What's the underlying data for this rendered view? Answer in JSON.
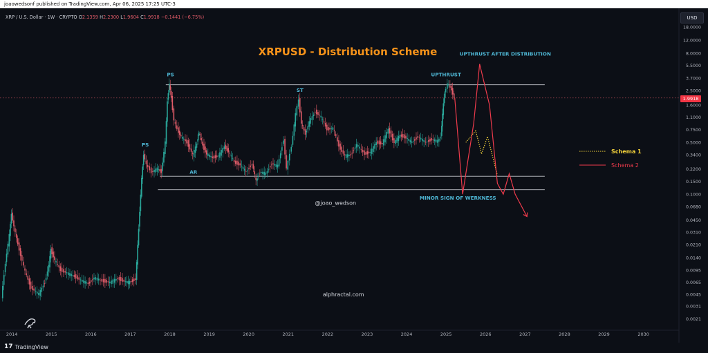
{
  "header": {
    "publisher": "joaowedsonf published on TradingView.com, Apr 06, 2025 17:25 UTC-3",
    "symbol_line": "XRP / U.S. Dollar · 1W · CRYPTO",
    "ohlc": {
      "o_label": "O",
      "o": "2.1359",
      "h_label": "H",
      "h": "2.2300",
      "l_label": "L",
      "l": "1.9604",
      "c_label": "C",
      "c": "1.9918",
      "change": "−0.1441 (−6.75%)"
    }
  },
  "currency": "USD",
  "last_price": "1.9918",
  "logo_text": "TradingView",
  "colors": {
    "background": "#0c0f16",
    "title": "#f7931a",
    "annotation": "#4fb8d6",
    "candle_up": "#2aa89b",
    "candle_down": "#e25b68",
    "schema_1": "#f5d33b",
    "schema_2": "#ef3b4c",
    "range_lines": "#c7c9cf"
  },
  "chart_data": {
    "type": "line",
    "title": "XRPUSD - Distribution Scheme",
    "scale": "log",
    "x_range": [
      2013.7,
      2030.9
    ],
    "y_range": [
      0.0016,
      26
    ],
    "x_ticks": [
      "2014",
      "2015",
      "2016",
      "2017",
      "2018",
      "2019",
      "2020",
      "2021",
      "2022",
      "2023",
      "2024",
      "2025",
      "2026",
      "2027",
      "2028",
      "2029",
      "2030"
    ],
    "y_ticks": [
      "18.0000",
      "12.0000",
      "8.0000",
      "5.5000",
      "3.7000",
      "2.5000",
      "1.6000",
      "1.1000",
      "0.7500",
      "0.5000",
      "0.3400",
      "0.2200",
      "0.1500",
      "0.1000",
      "0.0680",
      "0.0450",
      "0.0310",
      "0.0210",
      "0.0140",
      "0.0095",
      "0.0065",
      "0.0045",
      "0.0031",
      "0.0021"
    ],
    "series": [
      {
        "name": "",
        "kind": "price",
        "points": [
          [
            2013.75,
            0.004
          ],
          [
            2013.85,
            0.012
          ],
          [
            2013.95,
            0.028
          ],
          [
            2014.0,
            0.055
          ],
          [
            2014.1,
            0.03
          ],
          [
            2014.2,
            0.018
          ],
          [
            2014.35,
            0.009
          ],
          [
            2014.5,
            0.0055
          ],
          [
            2014.7,
            0.0045
          ],
          [
            2014.85,
            0.0065
          ],
          [
            2014.95,
            0.011
          ],
          [
            2015.0,
            0.018
          ],
          [
            2015.1,
            0.013
          ],
          [
            2015.25,
            0.0095
          ],
          [
            2015.45,
            0.0085
          ],
          [
            2015.6,
            0.0078
          ],
          [
            2015.8,
            0.0068
          ],
          [
            2015.95,
            0.0062
          ],
          [
            2016.1,
            0.0075
          ],
          [
            2016.3,
            0.0068
          ],
          [
            2016.5,
            0.0065
          ],
          [
            2016.7,
            0.0073
          ],
          [
            2016.9,
            0.0066
          ],
          [
            2017.0,
            0.0065
          ],
          [
            2017.15,
            0.0072
          ],
          [
            2017.2,
            0.02
          ],
          [
            2017.25,
            0.06
          ],
          [
            2017.3,
            0.16
          ],
          [
            2017.35,
            0.35
          ],
          [
            2017.42,
            0.25
          ],
          [
            2017.55,
            0.2
          ],
          [
            2017.7,
            0.22
          ],
          [
            2017.8,
            0.2
          ],
          [
            2017.9,
            0.5
          ],
          [
            2017.95,
            1.8
          ],
          [
            2018.0,
            3.1
          ],
          [
            2018.05,
            2.0
          ],
          [
            2018.12,
            1.0
          ],
          [
            2018.2,
            0.75
          ],
          [
            2018.3,
            0.6
          ],
          [
            2018.45,
            0.5
          ],
          [
            2018.6,
            0.34
          ],
          [
            2018.7,
            0.48
          ],
          [
            2018.75,
            0.7
          ],
          [
            2018.85,
            0.45
          ],
          [
            2018.95,
            0.35
          ],
          [
            2019.1,
            0.31
          ],
          [
            2019.25,
            0.33
          ],
          [
            2019.4,
            0.44
          ],
          [
            2019.5,
            0.38
          ],
          [
            2019.65,
            0.27
          ],
          [
            2019.8,
            0.25
          ],
          [
            2019.95,
            0.2
          ],
          [
            2020.1,
            0.26
          ],
          [
            2020.2,
            0.15
          ],
          [
            2020.3,
            0.2
          ],
          [
            2020.45,
            0.19
          ],
          [
            2020.6,
            0.26
          ],
          [
            2020.75,
            0.24
          ],
          [
            2020.9,
            0.55
          ],
          [
            2020.97,
            0.22
          ],
          [
            2021.1,
            0.45
          ],
          [
            2021.2,
            1.2
          ],
          [
            2021.28,
            1.9
          ],
          [
            2021.35,
            0.9
          ],
          [
            2021.45,
            0.65
          ],
          [
            2021.55,
            0.95
          ],
          [
            2021.7,
            1.3
          ],
          [
            2021.85,
            1.1
          ],
          [
            2022.0,
            0.75
          ],
          [
            2022.15,
            0.78
          ],
          [
            2022.3,
            0.45
          ],
          [
            2022.45,
            0.33
          ],
          [
            2022.6,
            0.34
          ],
          [
            2022.75,
            0.47
          ],
          [
            2022.95,
            0.35
          ],
          [
            2023.1,
            0.37
          ],
          [
            2023.25,
            0.5
          ],
          [
            2023.4,
            0.48
          ],
          [
            2023.55,
            0.75
          ],
          [
            2023.7,
            0.5
          ],
          [
            2023.85,
            0.62
          ],
          [
            2024.0,
            0.58
          ],
          [
            2024.15,
            0.5
          ],
          [
            2024.3,
            0.6
          ],
          [
            2024.5,
            0.5
          ],
          [
            2024.65,
            0.55
          ],
          [
            2024.8,
            0.52
          ],
          [
            2024.88,
            0.6
          ],
          [
            2024.92,
            1.2
          ],
          [
            2024.97,
            2.3
          ],
          [
            2025.05,
            3.1
          ],
          [
            2025.15,
            2.6
          ],
          [
            2025.22,
            2.0
          ]
        ]
      },
      {
        "name": "Schema 1",
        "kind": "projection-dotted",
        "points": [
          [
            2025.5,
            0.5
          ],
          [
            2025.75,
            0.72
          ],
          [
            2025.9,
            0.35
          ],
          [
            2026.05,
            0.6
          ],
          [
            2026.3,
            0.18
          ]
        ]
      },
      {
        "name": "Schema 2",
        "kind": "projection-solid",
        "points": [
          [
            2025.22,
            2.0
          ],
          [
            2025.42,
            0.1
          ],
          [
            2025.7,
            0.9
          ],
          [
            2025.85,
            5.7
          ],
          [
            2026.1,
            1.6
          ],
          [
            2026.3,
            0.14
          ],
          [
            2026.45,
            0.1
          ],
          [
            2026.6,
            0.19
          ],
          [
            2026.75,
            0.1
          ],
          [
            2027.05,
            0.05
          ]
        ]
      }
    ],
    "levels": [
      {
        "y": 3.0,
        "x_start": 2017.9,
        "x_end": 2027.5,
        "style": "range-top"
      },
      {
        "y": 0.175,
        "x_start": 2017.75,
        "x_end": 2027.5,
        "style": "range-mid"
      },
      {
        "y": 0.115,
        "x_start": 2017.7,
        "x_end": 2027.5,
        "style": "range-bottom"
      },
      {
        "y": 1.9918,
        "x_start": 2013.7,
        "x_end": 2030.9,
        "style": "last-price"
      }
    ],
    "annotations": [
      {
        "text": "PS",
        "x": 2017.38,
        "y": 0.44
      },
      {
        "text": "PS",
        "x": 2018.02,
        "y": 3.9
      },
      {
        "text": "AR",
        "x": 2018.6,
        "y": 0.19
      },
      {
        "text": "ST",
        "x": 2021.3,
        "y": 2.4
      },
      {
        "text": "UPTHRUST",
        "x": 2025.0,
        "y": 3.9
      },
      {
        "text": "UPTHRUST AFTER DISTRIBUTION",
        "x": 2026.5,
        "y": 7.4
      },
      {
        "text": "MINOR SIGN OF WERKNESS",
        "x": 2025.3,
        "y": 0.085
      },
      {
        "text": "@joao_wedson",
        "x": 2022.2,
        "y": 0.072
      },
      {
        "text": "alphractal.com",
        "x": 2022.4,
        "y": 0.0042
      }
    ],
    "legend": {
      "placement": "right",
      "entries": [
        {
          "label": "Schema 1",
          "style": "dotted",
          "color": "#f5d33b"
        },
        {
          "label": "Schema 2",
          "style": "solid",
          "color": "#ef3b4c"
        }
      ]
    },
    "grid": false
  }
}
